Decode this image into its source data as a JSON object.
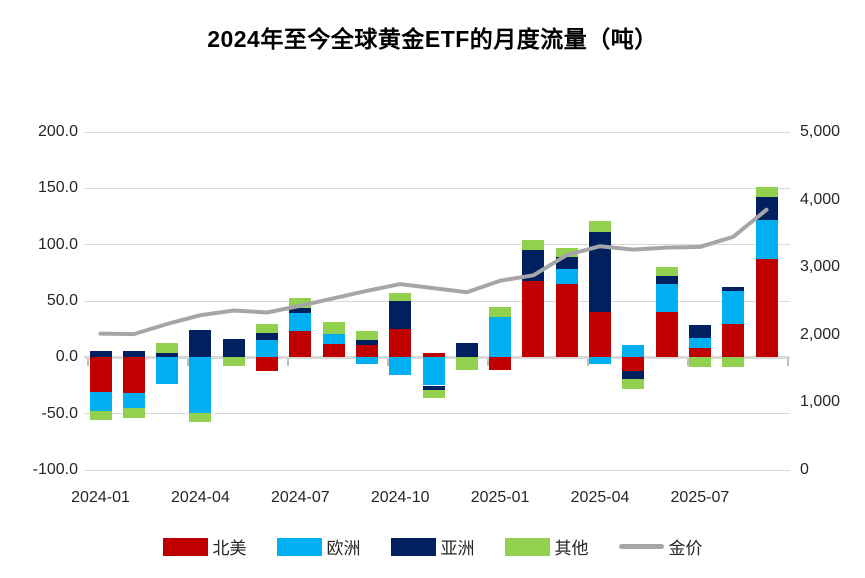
{
  "title": "2024年至今全球黄金ETF的月度流量（吨）",
  "chart_data": {
    "type": "bar",
    "subtype": "stacked-bar-with-line",
    "title": "2024年至今全球黄金ETF的月度流量（吨）",
    "categories": [
      "2024-01",
      "2024-02",
      "2024-03",
      "2024-04",
      "2024-05",
      "2024-06",
      "2024-07",
      "2024-08",
      "2024-09",
      "2024-10",
      "2024-11",
      "2024-12",
      "2025-01",
      "2025-02",
      "2025-03",
      "2025-04",
      "2025-05",
      "2025-06",
      "2025-07",
      "2025-08",
      "2025-09"
    ],
    "series": [
      {
        "name": "北美",
        "key": "north-america",
        "color": "#C00000",
        "values": [
          -31,
          -32,
          0,
          0,
          0,
          -12,
          23,
          12,
          11,
          25,
          4,
          0,
          -11,
          68,
          65,
          40,
          -12,
          40,
          8,
          30,
          87
        ]
      },
      {
        "name": "欧洲",
        "key": "europe",
        "color": "#00B0F0",
        "values": [
          -17,
          -13,
          -24,
          -49,
          0,
          15,
          16,
          9,
          -6,
          -16,
          -25,
          0,
          36,
          0,
          13,
          -6,
          11,
          25,
          9,
          29,
          35
        ]
      },
      {
        "name": "亚洲",
        "key": "asia",
        "color": "#002060",
        "values": [
          6,
          6,
          4,
          24,
          16,
          7,
          5,
          0,
          4,
          25,
          -4,
          13,
          0,
          27,
          11,
          71,
          -7,
          7,
          12,
          3,
          20
        ]
      },
      {
        "name": "其他",
        "key": "other",
        "color": "#92D050",
        "values": [
          -8,
          -9,
          9,
          -8,
          -8,
          8,
          9,
          10,
          8,
          7,
          -7,
          -11,
          9,
          9,
          8,
          10,
          -9,
          8,
          -9,
          -9,
          9
        ]
      }
    ],
    "line_series": {
      "name": "金价",
      "key": "gold-price",
      "color": "#A6A6A6",
      "axis": "right",
      "values": [
        2018,
        2010,
        2160,
        2290,
        2360,
        2330,
        2430,
        2540,
        2650,
        2750,
        2690,
        2630,
        2800,
        2880,
        3180,
        3310,
        3260,
        3290,
        3300,
        3450,
        3850
      ]
    },
    "left_axis": {
      "min": -100,
      "max": 200,
      "tick_values": [
        200,
        150,
        100,
        50,
        0,
        -50,
        -100
      ],
      "tick_labels": [
        "200.0",
        "150.0",
        "100.0",
        "50.0",
        "0.0",
        "-50.0",
        "-100.0"
      ]
    },
    "right_axis": {
      "min": 0,
      "max": 5000,
      "tick_values": [
        5000,
        4000,
        3000,
        2000,
        1000,
        0
      ],
      "tick_labels": [
        "5,000",
        "4,000",
        "3,000",
        "2,000",
        "1,000",
        "0"
      ]
    },
    "x_tick_label_indices": [
      0,
      3,
      6,
      9,
      12,
      15,
      18
    ],
    "x_tick_labels": [
      "2024-01",
      "2024-04",
      "2024-07",
      "2024-10",
      "2025-01",
      "2025-04",
      "2025-07"
    ],
    "legend": [
      "北美",
      "欧洲",
      "亚洲",
      "其他",
      "金价"
    ],
    "legend_position": "bottom",
    "grid": true
  }
}
